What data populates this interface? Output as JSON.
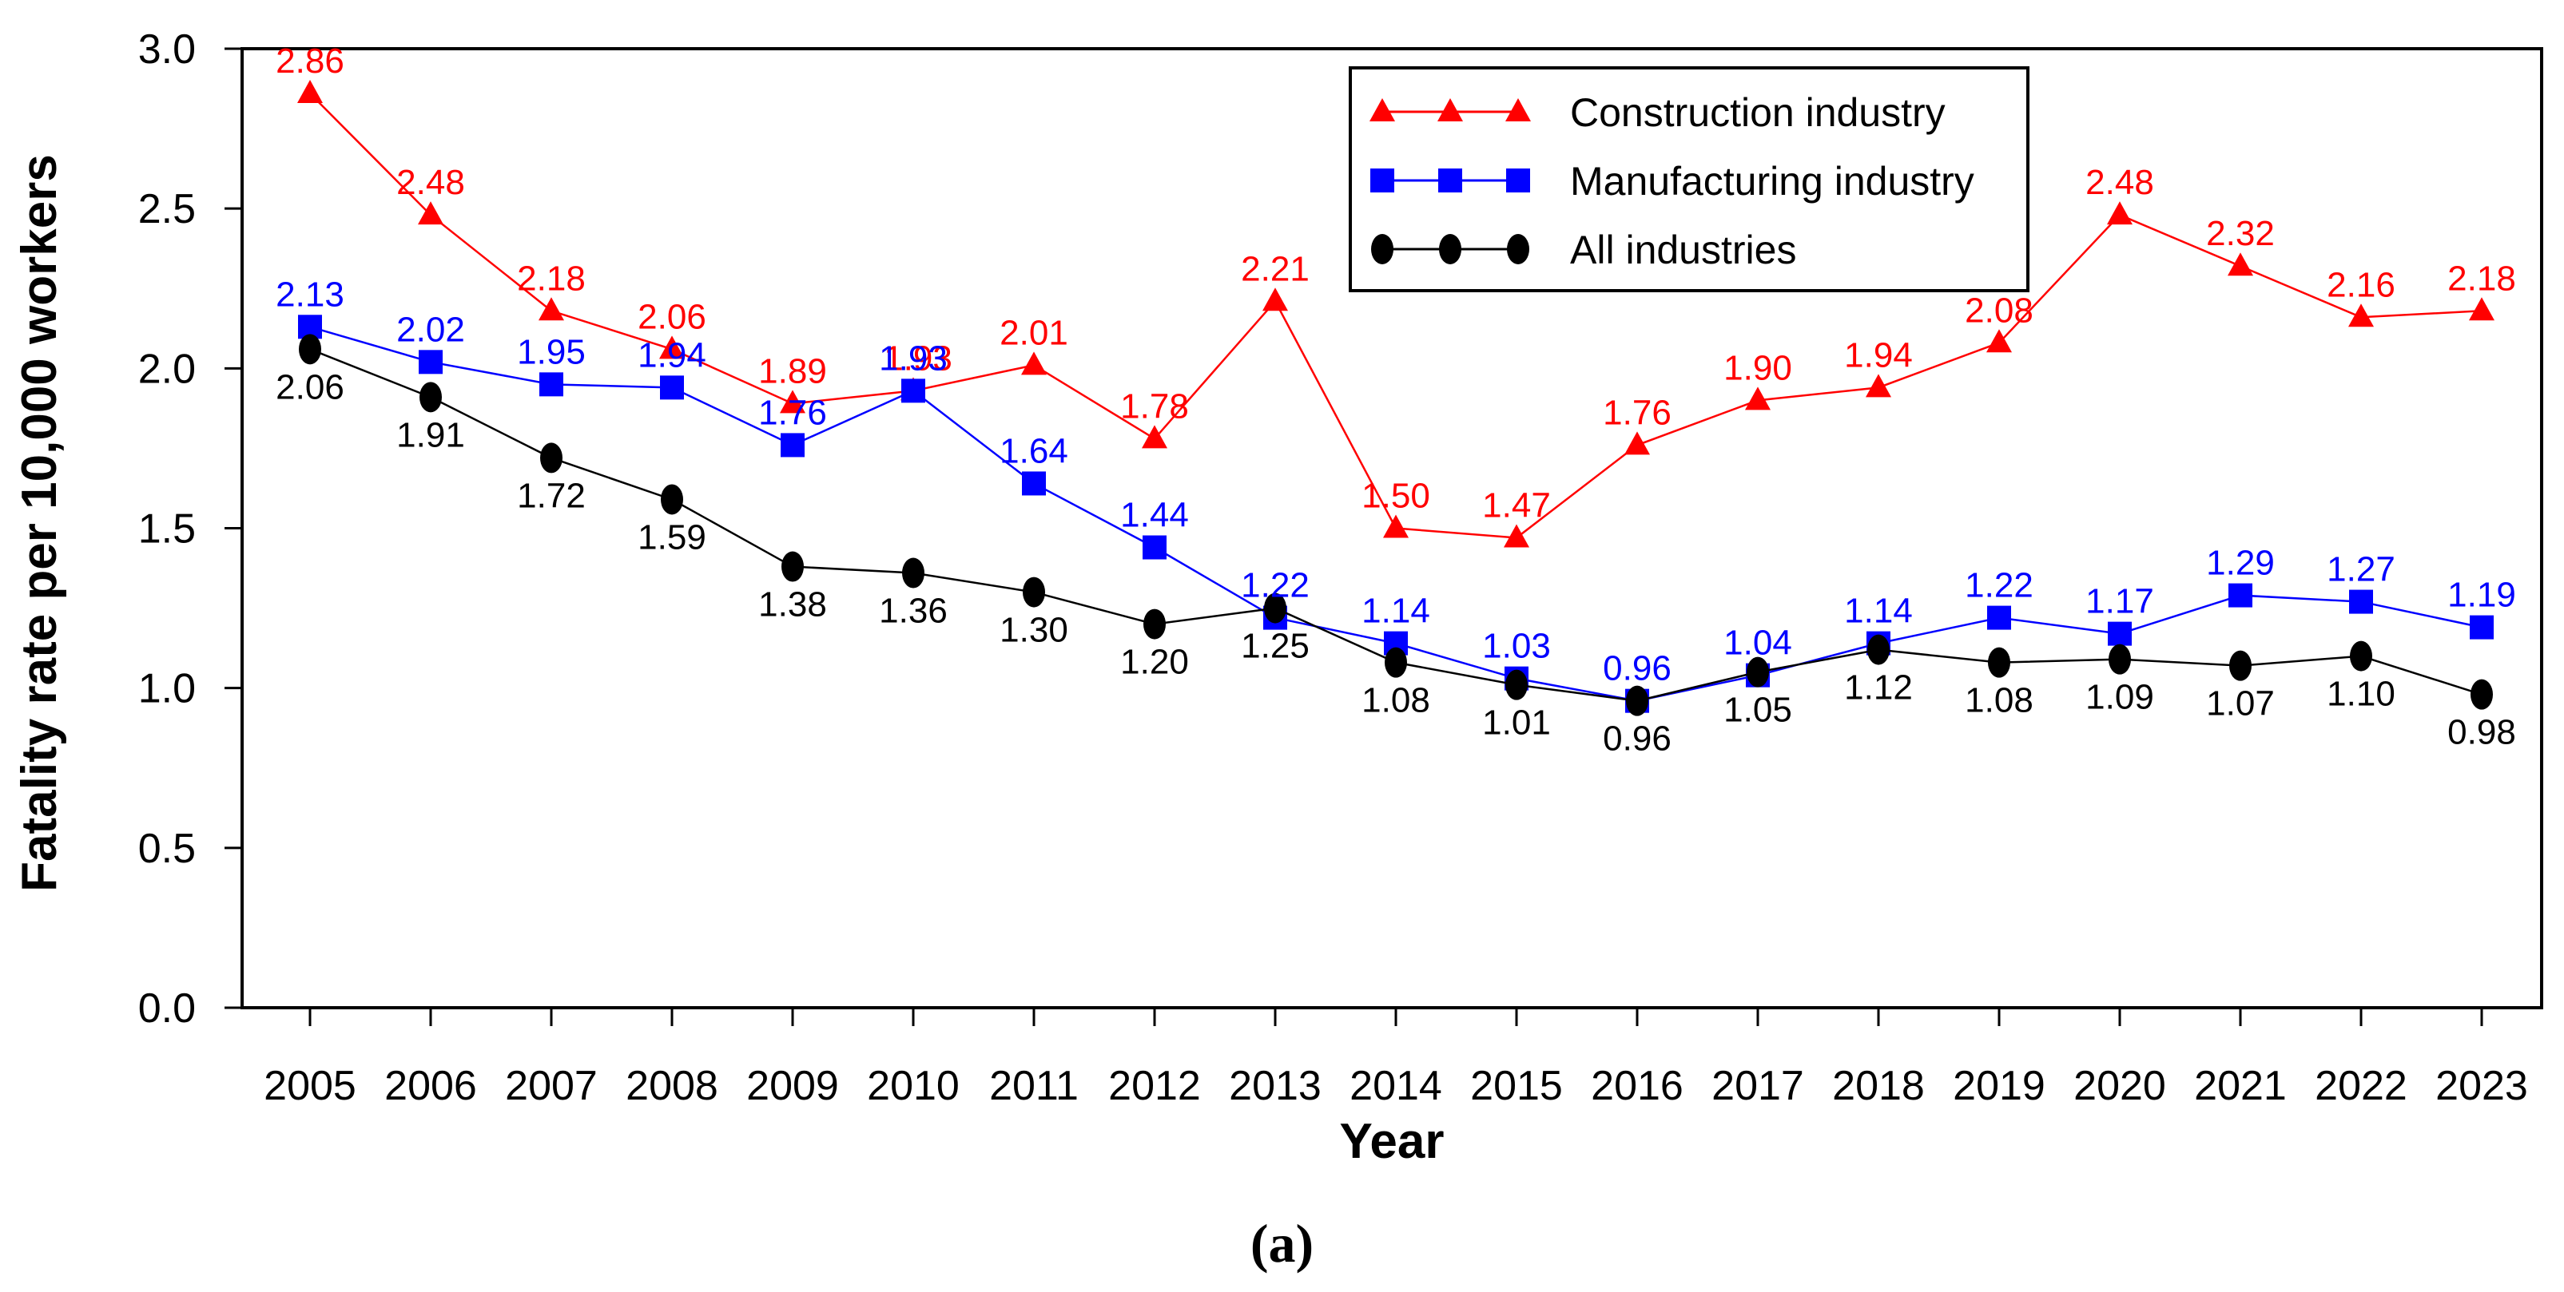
{
  "figure": {
    "caption": "(a)"
  },
  "chart_data": {
    "type": "line",
    "title": "",
    "xlabel": "Year",
    "ylabel": "Fatality rate per 10,000 workers",
    "x": [
      2005,
      2006,
      2007,
      2008,
      2009,
      2010,
      2011,
      2012,
      2013,
      2014,
      2015,
      2016,
      2017,
      2018,
      2019,
      2020,
      2021,
      2022,
      2023
    ],
    "ylim": [
      0.0,
      3.0
    ],
    "ytick_step": 0.5,
    "yticks": [
      "0.0",
      "0.5",
      "1.0",
      "1.5",
      "2.0",
      "2.5",
      "3.0"
    ],
    "grid": false,
    "legend_position": "top-right-inside",
    "value_decimals": 2,
    "series": [
      {
        "name": "Construction industry",
        "color": "#FF0000",
        "marker": "triangle",
        "label_position": "above",
        "values": [
          2.86,
          2.48,
          2.18,
          2.06,
          1.89,
          1.93,
          2.01,
          1.78,
          2.21,
          1.5,
          1.47,
          1.76,
          1.9,
          1.94,
          2.08,
          2.48,
          2.32,
          2.16,
          2.18
        ]
      },
      {
        "name": "Manufacturing industry",
        "color": "#0000FF",
        "marker": "square",
        "label_position": "above",
        "values": [
          2.13,
          2.02,
          1.95,
          1.94,
          1.76,
          1.93,
          1.64,
          1.44,
          1.22,
          1.14,
          1.03,
          0.96,
          1.04,
          1.14,
          1.22,
          1.17,
          1.29,
          1.27,
          1.19
        ]
      },
      {
        "name": "All industries",
        "color": "#000000",
        "marker": "circle",
        "label_position": "below",
        "values": [
          2.06,
          1.91,
          1.72,
          1.59,
          1.38,
          1.36,
          1.3,
          1.2,
          1.25,
          1.08,
          1.01,
          0.96,
          1.05,
          1.12,
          1.08,
          1.09,
          1.07,
          1.1,
          0.98
        ]
      }
    ]
  }
}
